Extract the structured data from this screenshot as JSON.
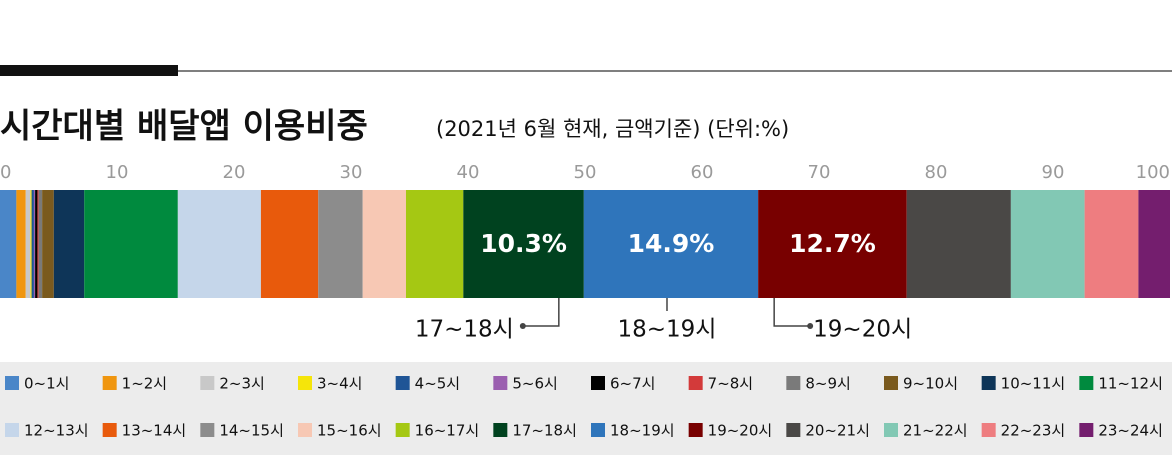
{
  "chart_data": {
    "type": "stacked-bar-100",
    "title": "시간대별 배달앱 이용비중",
    "subtitle": "(2021년 6월 현재, 금액기준) (단위:%)",
    "categories": [
      "0~1시",
      "1~2시",
      "2~3시",
      "3~4시",
      "4~5시",
      "5~6시",
      "6~7시",
      "7~8시",
      "8~9시",
      "9~10시",
      "10~11시",
      "11~12시",
      "12~13시",
      "13~14시",
      "14~15시",
      "15~16시",
      "16~17시",
      "17~18시",
      "18~19시",
      "19~20시",
      "20~21시",
      "21~22시",
      "22~23시",
      "23~24시"
    ],
    "values": [
      1.4,
      0.8,
      0.4,
      0.1,
      0.2,
      0.1,
      0.2,
      0.1,
      0.3,
      1.0,
      2.6,
      8.0,
      7.1,
      4.9,
      3.8,
      3.7,
      4.9,
      10.3,
      14.9,
      12.7,
      8.9,
      6.3,
      4.6,
      2.7
    ],
    "value_labels": [
      null,
      null,
      null,
      null,
      null,
      null,
      null,
      null,
      null,
      null,
      null,
      null,
      null,
      null,
      null,
      null,
      null,
      "10.3%",
      "14.9%",
      "12.7%",
      null,
      null,
      null,
      null
    ],
    "colors": [
      "#4a86c8",
      "#f0960f",
      "#c8c8c8",
      "#f5e50a",
      "#1f5596",
      "#9b5fb0",
      "#000000",
      "#d33a3a",
      "#7a7a7a",
      "#7a5a1e",
      "#0e3558",
      "#008a3e",
      "#c5d6ea",
      "#e85a0c",
      "#8c8c8c",
      "#f7c8b4",
      "#a5c813",
      "#00421f",
      "#2f75bb",
      "#780000",
      "#4a4846",
      "#82c8b4",
      "#ee7d80",
      "#741e6e"
    ],
    "xlim": [
      0,
      100
    ],
    "xticks": [
      0,
      10,
      20,
      30,
      40,
      50,
      60,
      70,
      80,
      90,
      100
    ]
  }
}
